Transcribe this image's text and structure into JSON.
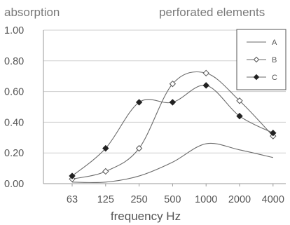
{
  "chart_data": {
    "type": "line",
    "title": "perforated elements",
    "ylabel": "absorption",
    "xlabel": "frequency Hz",
    "categories": [
      "63",
      "125",
      "250",
      "500",
      "1000",
      "2000",
      "4000"
    ],
    "ylim": [
      0,
      1.0
    ],
    "yticks": [
      "0.00",
      "0.20",
      "0.40",
      "0.60",
      "0.80",
      "1.00"
    ],
    "grid": true,
    "legend_position": "top-right",
    "series": [
      {
        "name": "A",
        "marker": "none",
        "color": "#555555",
        "values": [
          0.01,
          0.01,
          0.05,
          0.14,
          0.26,
          0.22,
          0.17
        ]
      },
      {
        "name": "B",
        "marker": "diamond-open",
        "color": "#555555",
        "values": [
          0.03,
          0.08,
          0.23,
          0.65,
          0.72,
          0.54,
          0.31
        ]
      },
      {
        "name": "C",
        "marker": "diamond-filled",
        "color": "#222222",
        "values": [
          0.05,
          0.23,
          0.53,
          0.53,
          0.64,
          0.44,
          0.33
        ]
      }
    ]
  }
}
